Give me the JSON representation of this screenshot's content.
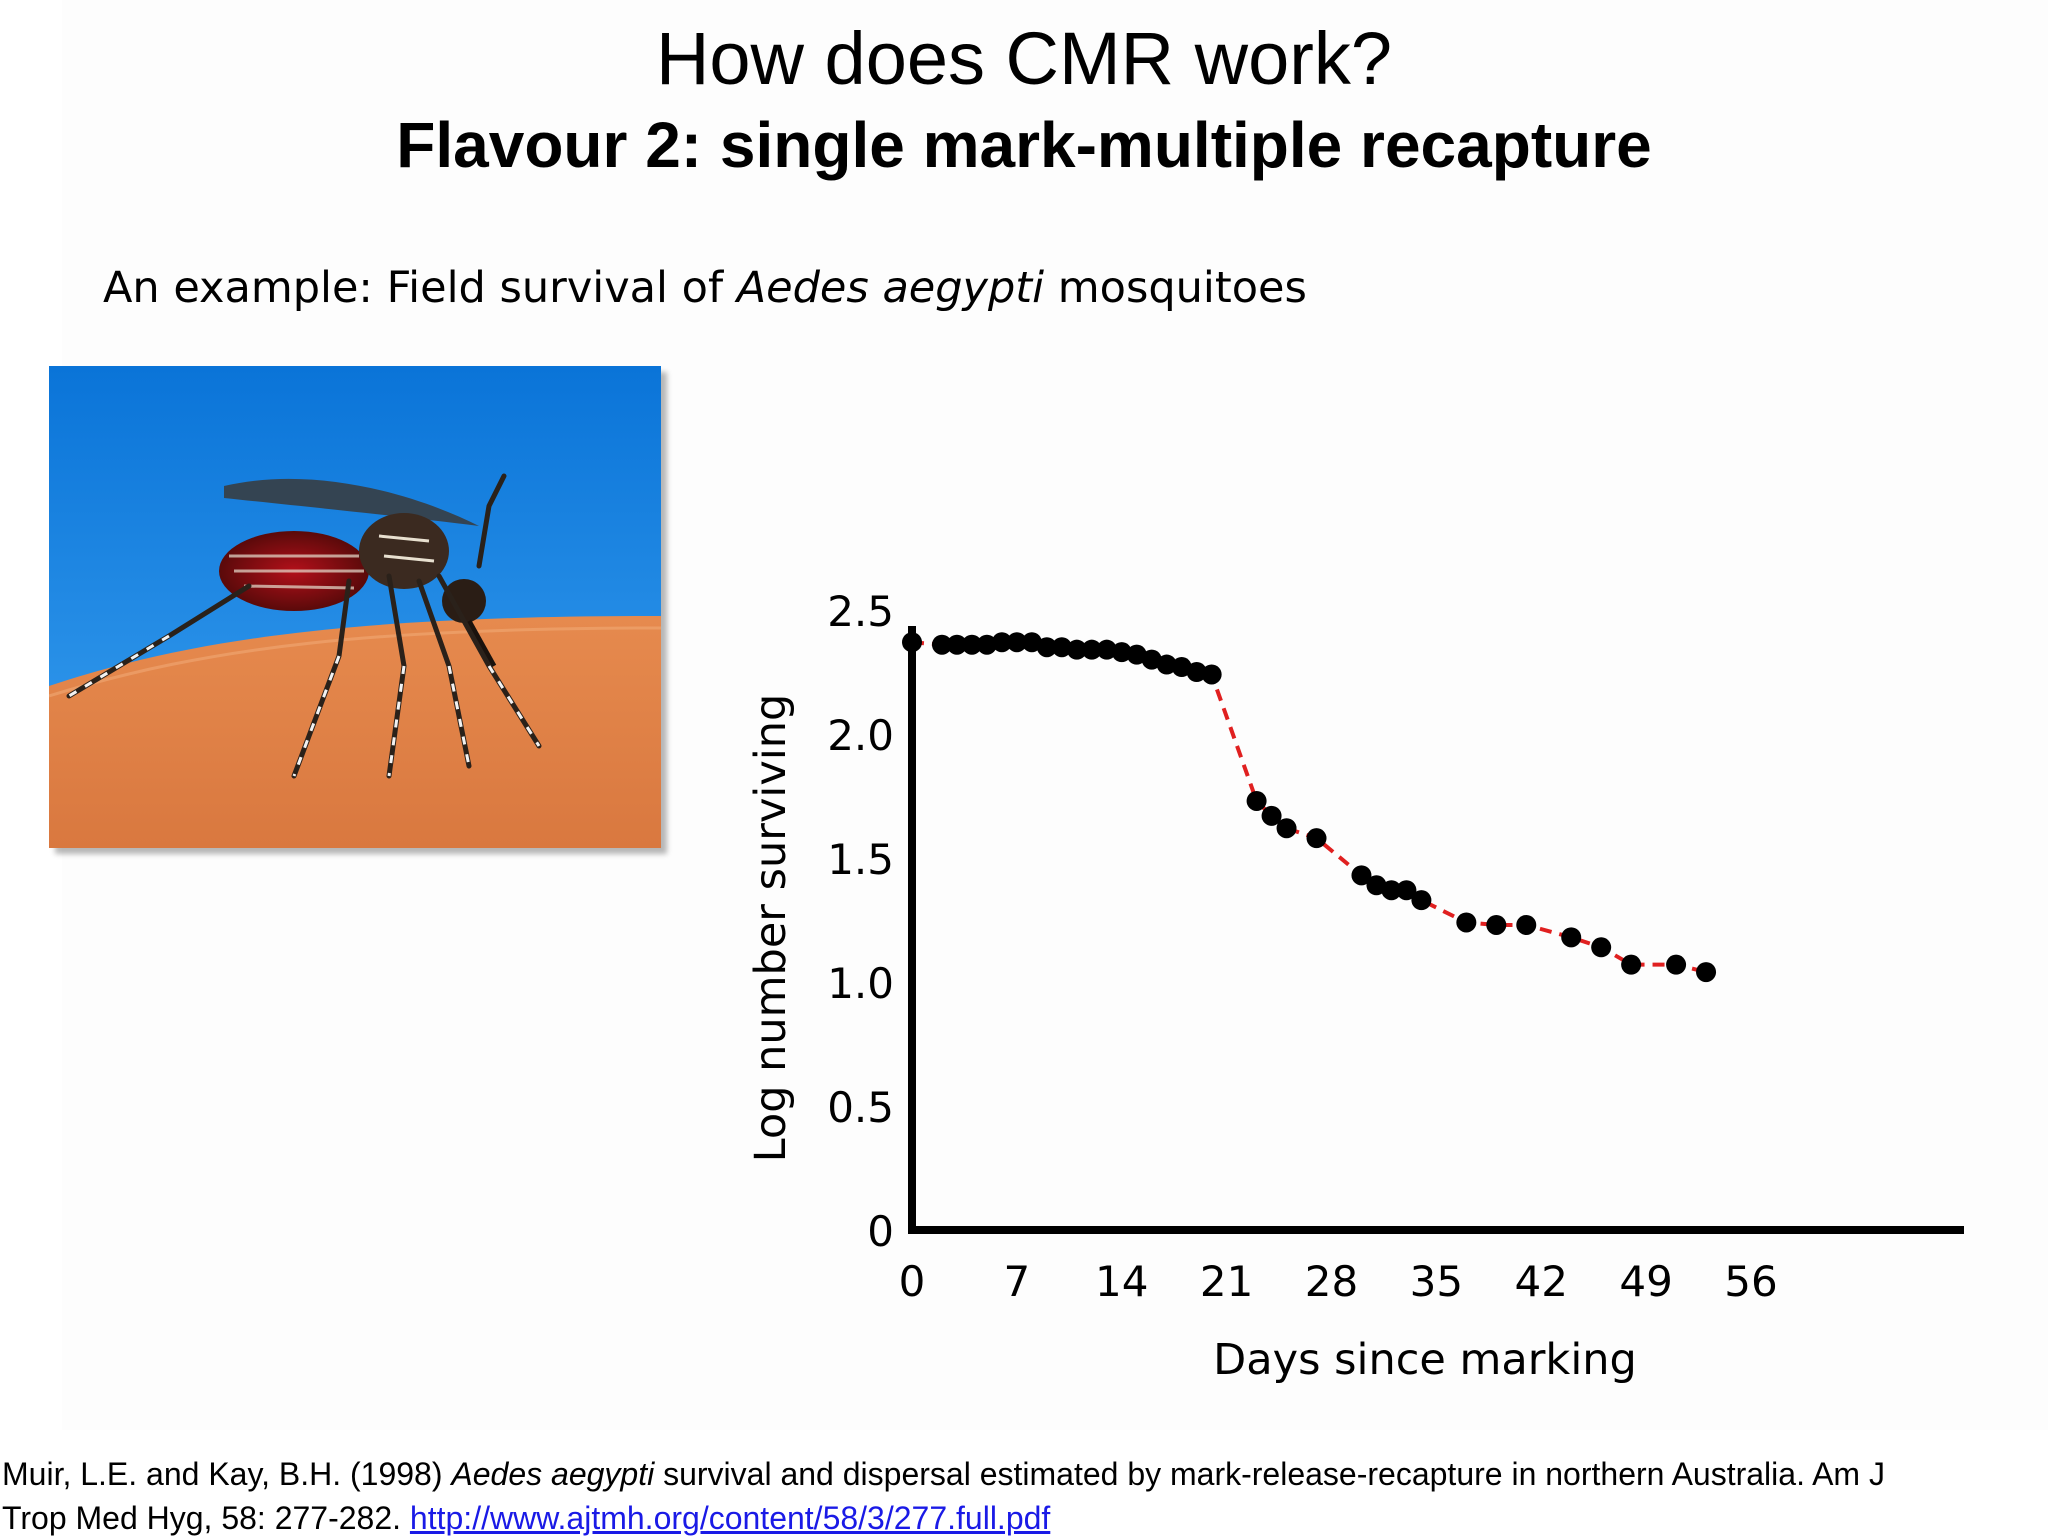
{
  "slide": {
    "title": "How does CMR work?",
    "subtitle": "Flavour 2: single mark-multiple recapture",
    "intro": {
      "prefix": "An example: Field survival of ",
      "species": "Aedes aegypti",
      "suffix": " mosquitoes"
    },
    "photo_icon": "mosquito-on-skin-photo",
    "citation": {
      "authors_year": "Muir, L.E. and Kay, B.H. (1998) ",
      "species": "Aedes aegypti",
      "title_rest": " survival and dispersal estimated by mark-release-recapture in northern Australia. Am J",
      "journal": "Trop Med Hyg, 58: 277-282. ",
      "link": "http://www.ajtmh.org/content/58/3/277.full.pdf"
    },
    "colors": {
      "line": "#e02020",
      "marker": "#000000",
      "link": "#1a1ae6"
    }
  },
  "chart_data": {
    "type": "line",
    "xlabel": "Days since marking",
    "ylabel": "Log number surviving",
    "xlim": [
      0,
      56
    ],
    "ylim": [
      0,
      2.5
    ],
    "xticks": [
      0,
      7,
      14,
      21,
      28,
      35,
      42,
      49,
      56
    ],
    "xtick_labels": [
      "0",
      "7",
      "14",
      "21",
      "28",
      "35",
      "42",
      "49",
      "56"
    ],
    "yticks": [
      0,
      0.5,
      1.0,
      1.5,
      2.0,
      2.5
    ],
    "ytick_labels": [
      "0",
      "0.5",
      "1.0",
      "1.5",
      "2.0",
      "2.5"
    ],
    "grid": false,
    "series": [
      {
        "x": [
          0,
          2,
          3,
          4,
          5,
          6,
          7,
          8,
          9,
          10,
          11,
          12,
          13,
          14,
          15,
          16,
          17,
          18,
          19,
          20,
          23,
          24,
          25,
          27,
          30,
          31,
          32,
          33,
          34,
          37,
          39,
          41,
          44,
          46,
          48,
          51,
          53
        ],
        "y": [
          2.37,
          2.36,
          2.36,
          2.36,
          2.36,
          2.37,
          2.37,
          2.37,
          2.35,
          2.35,
          2.34,
          2.34,
          2.34,
          2.33,
          2.32,
          2.3,
          2.28,
          2.27,
          2.25,
          2.24,
          1.73,
          1.67,
          1.62,
          1.58,
          1.43,
          1.39,
          1.37,
          1.37,
          1.33,
          1.24,
          1.23,
          1.23,
          1.18,
          1.14,
          1.07,
          1.07,
          1.04
        ],
        "line_style": "dashed",
        "line_color": "#e02020",
        "marker": "circle",
        "marker_color": "#000000"
      }
    ]
  }
}
